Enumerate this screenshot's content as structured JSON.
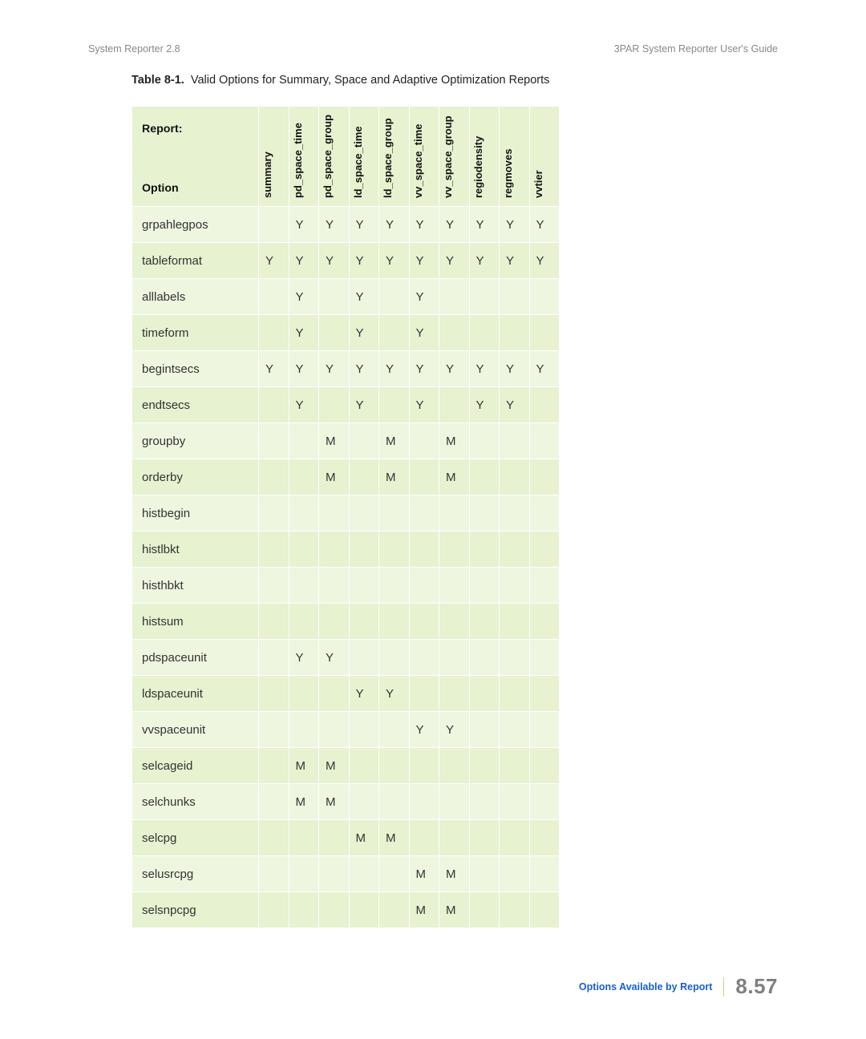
{
  "header": {
    "left": "System Reporter 2.8",
    "right": "3PAR System Reporter User's Guide"
  },
  "caption": {
    "prefix": "Table 8-1.",
    "text": "Valid Options for Summary, Space and Adaptive Optimization Reports"
  },
  "table": {
    "header_label_line1": "Report:",
    "header_label_line2": "Option",
    "columns": [
      "summary",
      "pd_space_time",
      "pd_space_group",
      "ld_space_time",
      "ld_space_group",
      "vv_space_time",
      "vv_space_group",
      "regiodensity",
      "regmoves",
      "vvtier"
    ],
    "rows": [
      {
        "label": "grpahlegpos",
        "cells": [
          "",
          "Y",
          "Y",
          "Y",
          "Y",
          "Y",
          "Y",
          "Y",
          "Y",
          "Y"
        ]
      },
      {
        "label": "tableformat",
        "cells": [
          "Y",
          "Y",
          "Y",
          "Y",
          "Y",
          "Y",
          "Y",
          "Y",
          "Y",
          "Y"
        ]
      },
      {
        "label": "alllabels",
        "cells": [
          "",
          "Y",
          "",
          "Y",
          "",
          "Y",
          "",
          "",
          "",
          ""
        ]
      },
      {
        "label": "timeform",
        "cells": [
          "",
          "Y",
          "",
          "Y",
          "",
          "Y",
          "",
          "",
          "",
          ""
        ]
      },
      {
        "label": "begintsecs",
        "cells": [
          "Y",
          "Y",
          "Y",
          "Y",
          "Y",
          "Y",
          "Y",
          "Y",
          "Y",
          "Y"
        ]
      },
      {
        "label": "endtsecs",
        "cells": [
          "",
          "Y",
          "",
          "Y",
          "",
          "Y",
          "",
          "Y",
          "Y",
          ""
        ]
      },
      {
        "label": "groupby",
        "cells": [
          "",
          "",
          "M",
          "",
          "M",
          "",
          "M",
          "",
          "",
          ""
        ]
      },
      {
        "label": "orderby",
        "cells": [
          "",
          "",
          "M",
          "",
          "M",
          "",
          "M",
          "",
          "",
          ""
        ]
      },
      {
        "label": "histbegin",
        "cells": [
          "",
          "",
          "",
          "",
          "",
          "",
          "",
          "",
          "",
          ""
        ]
      },
      {
        "label": "histlbkt",
        "cells": [
          "",
          "",
          "",
          "",
          "",
          "",
          "",
          "",
          "",
          ""
        ]
      },
      {
        "label": "histhbkt",
        "cells": [
          "",
          "",
          "",
          "",
          "",
          "",
          "",
          "",
          "",
          ""
        ]
      },
      {
        "label": "histsum",
        "cells": [
          "",
          "",
          "",
          "",
          "",
          "",
          "",
          "",
          "",
          ""
        ]
      },
      {
        "label": "pdspaceunit",
        "cells": [
          "",
          "Y",
          "Y",
          "",
          "",
          "",
          "",
          "",
          "",
          ""
        ]
      },
      {
        "label": "ldspaceunit",
        "cells": [
          "",
          "",
          "",
          "Y",
          "Y",
          "",
          "",
          "",
          "",
          ""
        ]
      },
      {
        "label": "vvspaceunit",
        "cells": [
          "",
          "",
          "",
          "",
          "",
          "Y",
          "Y",
          "",
          "",
          ""
        ]
      },
      {
        "label": "selcageid",
        "cells": [
          "",
          "M",
          "M",
          "",
          "",
          "",
          "",
          "",
          "",
          ""
        ]
      },
      {
        "label": "selchunks",
        "cells": [
          "",
          "M",
          "M",
          "",
          "",
          "",
          "",
          "",
          "",
          ""
        ]
      },
      {
        "label": "selcpg",
        "cells": [
          "",
          "",
          "",
          "M",
          "M",
          "",
          "",
          "",
          "",
          ""
        ]
      },
      {
        "label": "selusrcpg",
        "cells": [
          "",
          "",
          "",
          "",
          "",
          "M",
          "M",
          "",
          "",
          ""
        ]
      },
      {
        "label": "selsnpcpg",
        "cells": [
          "",
          "",
          "",
          "",
          "",
          "M",
          "M",
          "",
          "",
          ""
        ]
      }
    ],
    "colors": {
      "row_odd": "#eef6df",
      "row_even": "#e6f2d0",
      "border": "#ffffff",
      "text": "#333333",
      "header_text": "#111111"
    },
    "fontsize_header_pt": 14,
    "fontsize_body_pt": 15
  },
  "footer": {
    "link_text": "Options Available by Report",
    "page_number": "8.57",
    "link_color": "#1a5fd0",
    "sep_color": "#c9d47b",
    "pagenum_color": "#808080"
  }
}
